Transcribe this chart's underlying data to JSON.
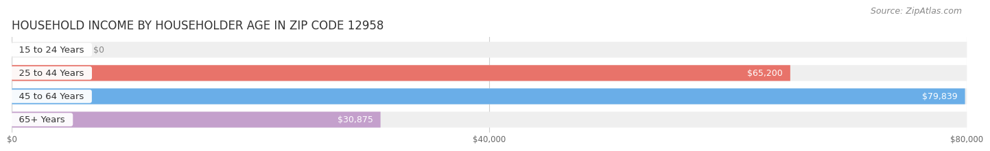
{
  "title": "HOUSEHOLD INCOME BY HOUSEHOLDER AGE IN ZIP CODE 12958",
  "source": "Source: ZipAtlas.com",
  "categories": [
    "15 to 24 Years",
    "25 to 44 Years",
    "45 to 64 Years",
    "65+ Years"
  ],
  "values": [
    0,
    65200,
    79839,
    30875
  ],
  "bar_colors": [
    "#f5c89a",
    "#e8736a",
    "#6aaee8",
    "#c4a0cc"
  ],
  "xlim": [
    0,
    80000
  ],
  "xticks": [
    0,
    40000,
    80000
  ],
  "xtick_labels": [
    "$0",
    "$40,000",
    "$80,000"
  ],
  "background_color": "#ffffff",
  "bar_bg_color": "#efefef",
  "bar_height": 0.68,
  "title_fontsize": 12,
  "label_fontsize": 9.5,
  "value_fontsize": 9,
  "source_fontsize": 9
}
